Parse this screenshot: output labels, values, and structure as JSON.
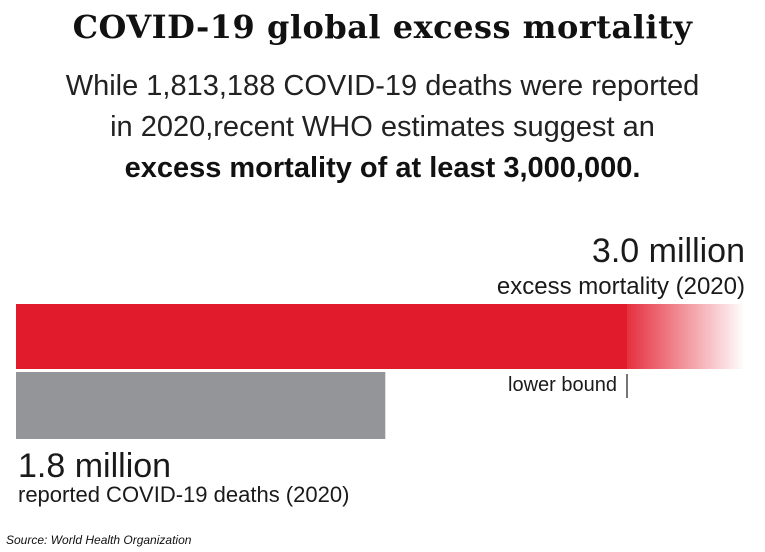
{
  "title": "COVID-19 global excess mortality",
  "subtitle": {
    "line1": "While 1,813,188 COVID-19 deaths were reported",
    "line2": "in 2020,recent WHO estimates suggest an",
    "line3": "excess mortality of at least 3,000,000."
  },
  "source": "Source: World Health Organization",
  "colors": {
    "excess": "#e21b2c",
    "reported": "#939598",
    "text": "#1a1a1a"
  },
  "chart_data": {
    "type": "bar",
    "orientation": "horizontal",
    "unit": "million",
    "bars": [
      {
        "key": "excess",
        "value": 3.0,
        "value_label": "3.0 million",
        "label": "excess mortality (2020)",
        "fades_beyond_lower_bound": true
      },
      {
        "key": "reported",
        "value": 1.813188,
        "value_label": "1.8 million",
        "label": "reported COVID-19 deaths (2020)"
      }
    ],
    "annotations": [
      {
        "text": "lower bound",
        "value": 3.0,
        "applies_to": "excess"
      }
    ]
  }
}
